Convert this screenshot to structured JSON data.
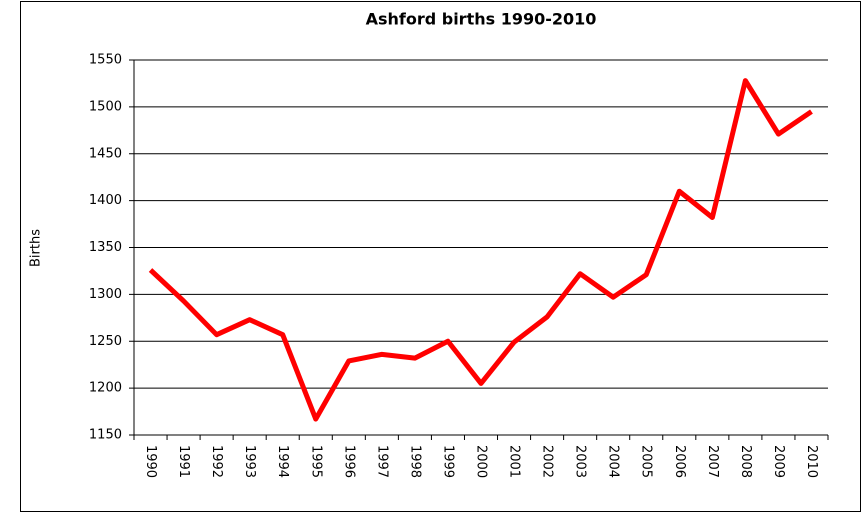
{
  "chart_data": {
    "type": "line",
    "title": "Ashford births 1990-2010",
    "y_label": "Births",
    "categories": [
      "1990",
      "1991",
      "1992",
      "1993",
      "1994",
      "1995",
      "1996",
      "1997",
      "1998",
      "1999",
      "2000",
      "2001",
      "2002",
      "2003",
      "2004",
      "2005",
      "2006",
      "2007",
      "2008",
      "2009",
      "2010"
    ],
    "series": [
      {
        "name": "Births",
        "color": "#ff0000",
        "values": [
          1326,
          1293,
          1257,
          1273,
          1257,
          1167,
          1229,
          1236,
          1232,
          1250,
          1205,
          1249,
          1276,
          1322,
          1297,
          1321,
          1410,
          1382,
          1528,
          1471,
          1495
        ]
      }
    ],
    "ylim": [
      1150,
      1550
    ],
    "yticks": [
      1150,
      1200,
      1250,
      1300,
      1350,
      1400,
      1450,
      1500,
      1550
    ],
    "grid": true,
    "legend": false
  }
}
